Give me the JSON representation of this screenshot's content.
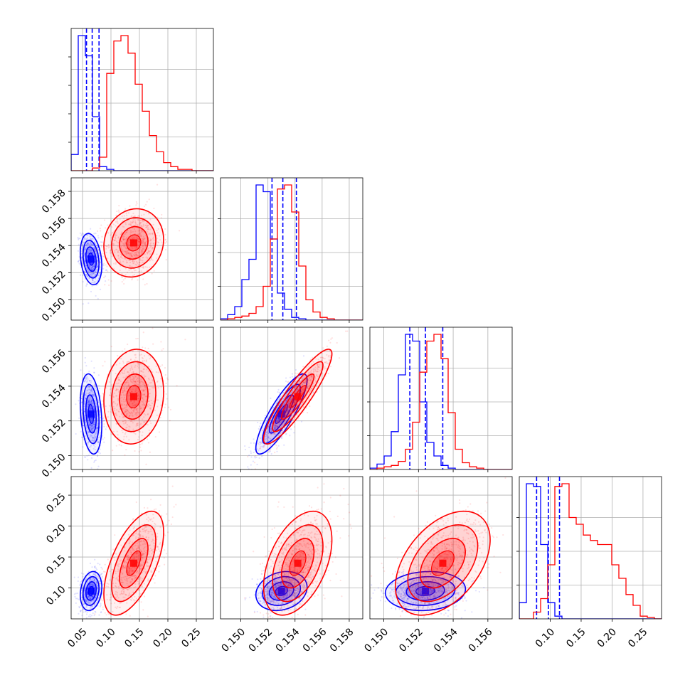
{
  "chart_data": {
    "type": "corner",
    "description_note": "",
    "params": [
      {
        "id": "p0",
        "range": [
          0.03,
          0.28
        ],
        "ticks": [
          0.05,
          0.1,
          0.15,
          0.2,
          0.25
        ],
        "tick_labels": [
          "0.05",
          "0.10",
          "0.15",
          "0.20",
          "0.25"
        ]
      },
      {
        "id": "p1",
        "range": [
          0.1485,
          0.159
        ],
        "ticks": [
          0.15,
          0.152,
          0.154,
          0.156,
          0.158
        ],
        "tick_labels": [
          "0.150",
          "0.152",
          "0.154",
          "0.156",
          "0.158"
        ]
      },
      {
        "id": "p2",
        "range": [
          0.1492,
          0.1574
        ],
        "ticks": [
          0.15,
          0.152,
          0.154,
          0.156
        ],
        "tick_labels": [
          "0.150",
          "0.152",
          "0.154",
          "0.156"
        ]
      },
      {
        "id": "p3",
        "range": [
          0.05,
          0.28
        ],
        "ticks": [
          0.1,
          0.15,
          0.2,
          0.25
        ],
        "tick_labels": [
          "0.10",
          "0.15",
          "0.20",
          "0.25"
        ]
      }
    ],
    "series": [
      {
        "color": "#0000ff",
        "mean": [
          0.065,
          0.153,
          0.1524,
          0.095
        ],
        "sd": [
          0.009,
          0.0009,
          0.0011,
          0.015
        ],
        "corr": [
          [
            0,
            1,
            -0.25
          ],
          [
            0,
            2,
            -0.25
          ],
          [
            0,
            3,
            0.2
          ],
          [
            1,
            2,
            0.85
          ],
          [
            1,
            3,
            0.2
          ],
          [
            2,
            3,
            0.1
          ]
        ],
        "quantiles": [
          [
            0.057,
            0.067,
            0.079
          ],
          [
            0.1523,
            0.1531,
            0.1541
          ],
          [
            0.1515,
            0.1524,
            0.1534
          ],
          [
            0.078,
            0.097,
            0.115
          ]
        ],
        "hist": [
          {
            "values": [
              0.12,
              1.0,
              0.85,
              0.4,
              0.03,
              0.01,
              0,
              0,
              0,
              0,
              0,
              0,
              0,
              0,
              0,
              0,
              0,
              0,
              0,
              0
            ]
          },
          {
            "values": [
              0.01,
              0.04,
              0.1,
              0.3,
              0.45,
              1.0,
              0.95,
              0.6,
              0.2,
              0.08,
              0.02,
              0.01,
              0,
              0,
              0,
              0,
              0,
              0,
              0,
              0
            ]
          },
          {
            "values": [
              0.01,
              0.04,
              0.1,
              0.28,
              0.7,
              1.0,
              0.95,
              0.5,
              0.2,
              0.1,
              0.03,
              0.01,
              0,
              0,
              0,
              0,
              0,
              0,
              0,
              0
            ]
          },
          {
            "values": [
              0.12,
              1.0,
              0.98,
              0.55,
              0.12,
              0.02,
              0,
              0,
              0,
              0,
              0,
              0,
              0,
              0,
              0,
              0,
              0,
              0,
              0,
              0
            ]
          }
        ]
      },
      {
        "color": "#ff0000",
        "mean": [
          0.14,
          0.1542,
          0.1534,
          0.14
        ],
        "sd": [
          0.025,
          0.0012,
          0.0013,
          0.04
        ],
        "corr": [
          [
            0,
            1,
            0.1
          ],
          [
            0,
            2,
            0.1
          ],
          [
            0,
            3,
            0.6
          ],
          [
            1,
            2,
            0.9
          ],
          [
            1,
            3,
            0.45
          ],
          [
            2,
            3,
            0.45
          ]
        ],
        "quantiles": [],
        "hist": [
          {
            "values": [
              0,
              0,
              0,
              0.02,
              0.1,
              0.72,
              0.96,
              1.0,
              0.87,
              0.64,
              0.44,
              0.26,
              0.14,
              0.06,
              0.03,
              0.01,
              0.01,
              0,
              0,
              0
            ]
          },
          {
            "values": [
              0,
              0.01,
              0.02,
              0.03,
              0.05,
              0.1,
              0.25,
              0.6,
              0.97,
              1.0,
              0.8,
              0.4,
              0.15,
              0.06,
              0.02,
              0.01,
              0,
              0,
              0,
              0
            ]
          },
          {
            "values": [
              0,
              0.01,
              0.02,
              0.03,
              0.06,
              0.15,
              0.35,
              0.72,
              0.95,
              1.0,
              0.82,
              0.42,
              0.15,
              0.05,
              0.02,
              0.01,
              0,
              0,
              0,
              0
            ]
          },
          {
            "values": [
              0,
              0,
              0.05,
              0.15,
              0.4,
              0.98,
              1.0,
              0.75,
              0.7,
              0.62,
              0.58,
              0.55,
              0.55,
              0.4,
              0.3,
              0.18,
              0.1,
              0.02,
              0.01,
              0
            ]
          }
        ]
      }
    ],
    "grid": true,
    "legend": "none",
    "title": "",
    "xlabel": "",
    "ylabel": ""
  }
}
